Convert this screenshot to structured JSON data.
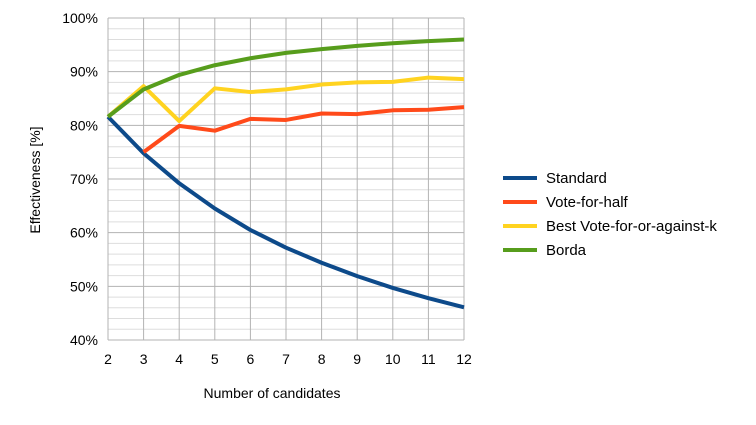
{
  "chart_data": {
    "type": "line",
    "title": "",
    "xlabel": "Number of candidates",
    "ylabel": "Effectiveness [%]",
    "x": [
      2,
      3,
      4,
      5,
      6,
      7,
      8,
      9,
      10,
      11,
      12
    ],
    "xlim": [
      2,
      12
    ],
    "ylim": [
      40,
      100
    ],
    "y_ticks": [
      40,
      50,
      60,
      70,
      80,
      90,
      100
    ],
    "y_tick_format": "%",
    "grid": true,
    "minor_grid": true,
    "legend_position": "right",
    "series": [
      {
        "name": "Standard",
        "color": "#0d4a8a",
        "values": [
          81.6,
          74.8,
          69.2,
          64.5,
          60.5,
          57.2,
          54.4,
          51.9,
          49.7,
          47.8,
          46.1
        ]
      },
      {
        "name": "Vote-for-half",
        "color": "#ff4a1a",
        "values": [
          null,
          75.0,
          79.9,
          79.0,
          81.2,
          81.0,
          82.2,
          82.1,
          82.8,
          82.9,
          83.4
        ]
      },
      {
        "name": "Best Vote-for-or-against-k",
        "color": "#ffd320",
        "values": [
          81.6,
          87.3,
          80.8,
          86.9,
          86.2,
          86.7,
          87.6,
          88.0,
          88.1,
          88.9,
          88.6
        ]
      },
      {
        "name": "Borda",
        "color": "#579d1c",
        "values": [
          81.6,
          86.7,
          89.4,
          91.2,
          92.5,
          93.5,
          94.2,
          94.8,
          95.3,
          95.7,
          96.0
        ]
      }
    ]
  }
}
